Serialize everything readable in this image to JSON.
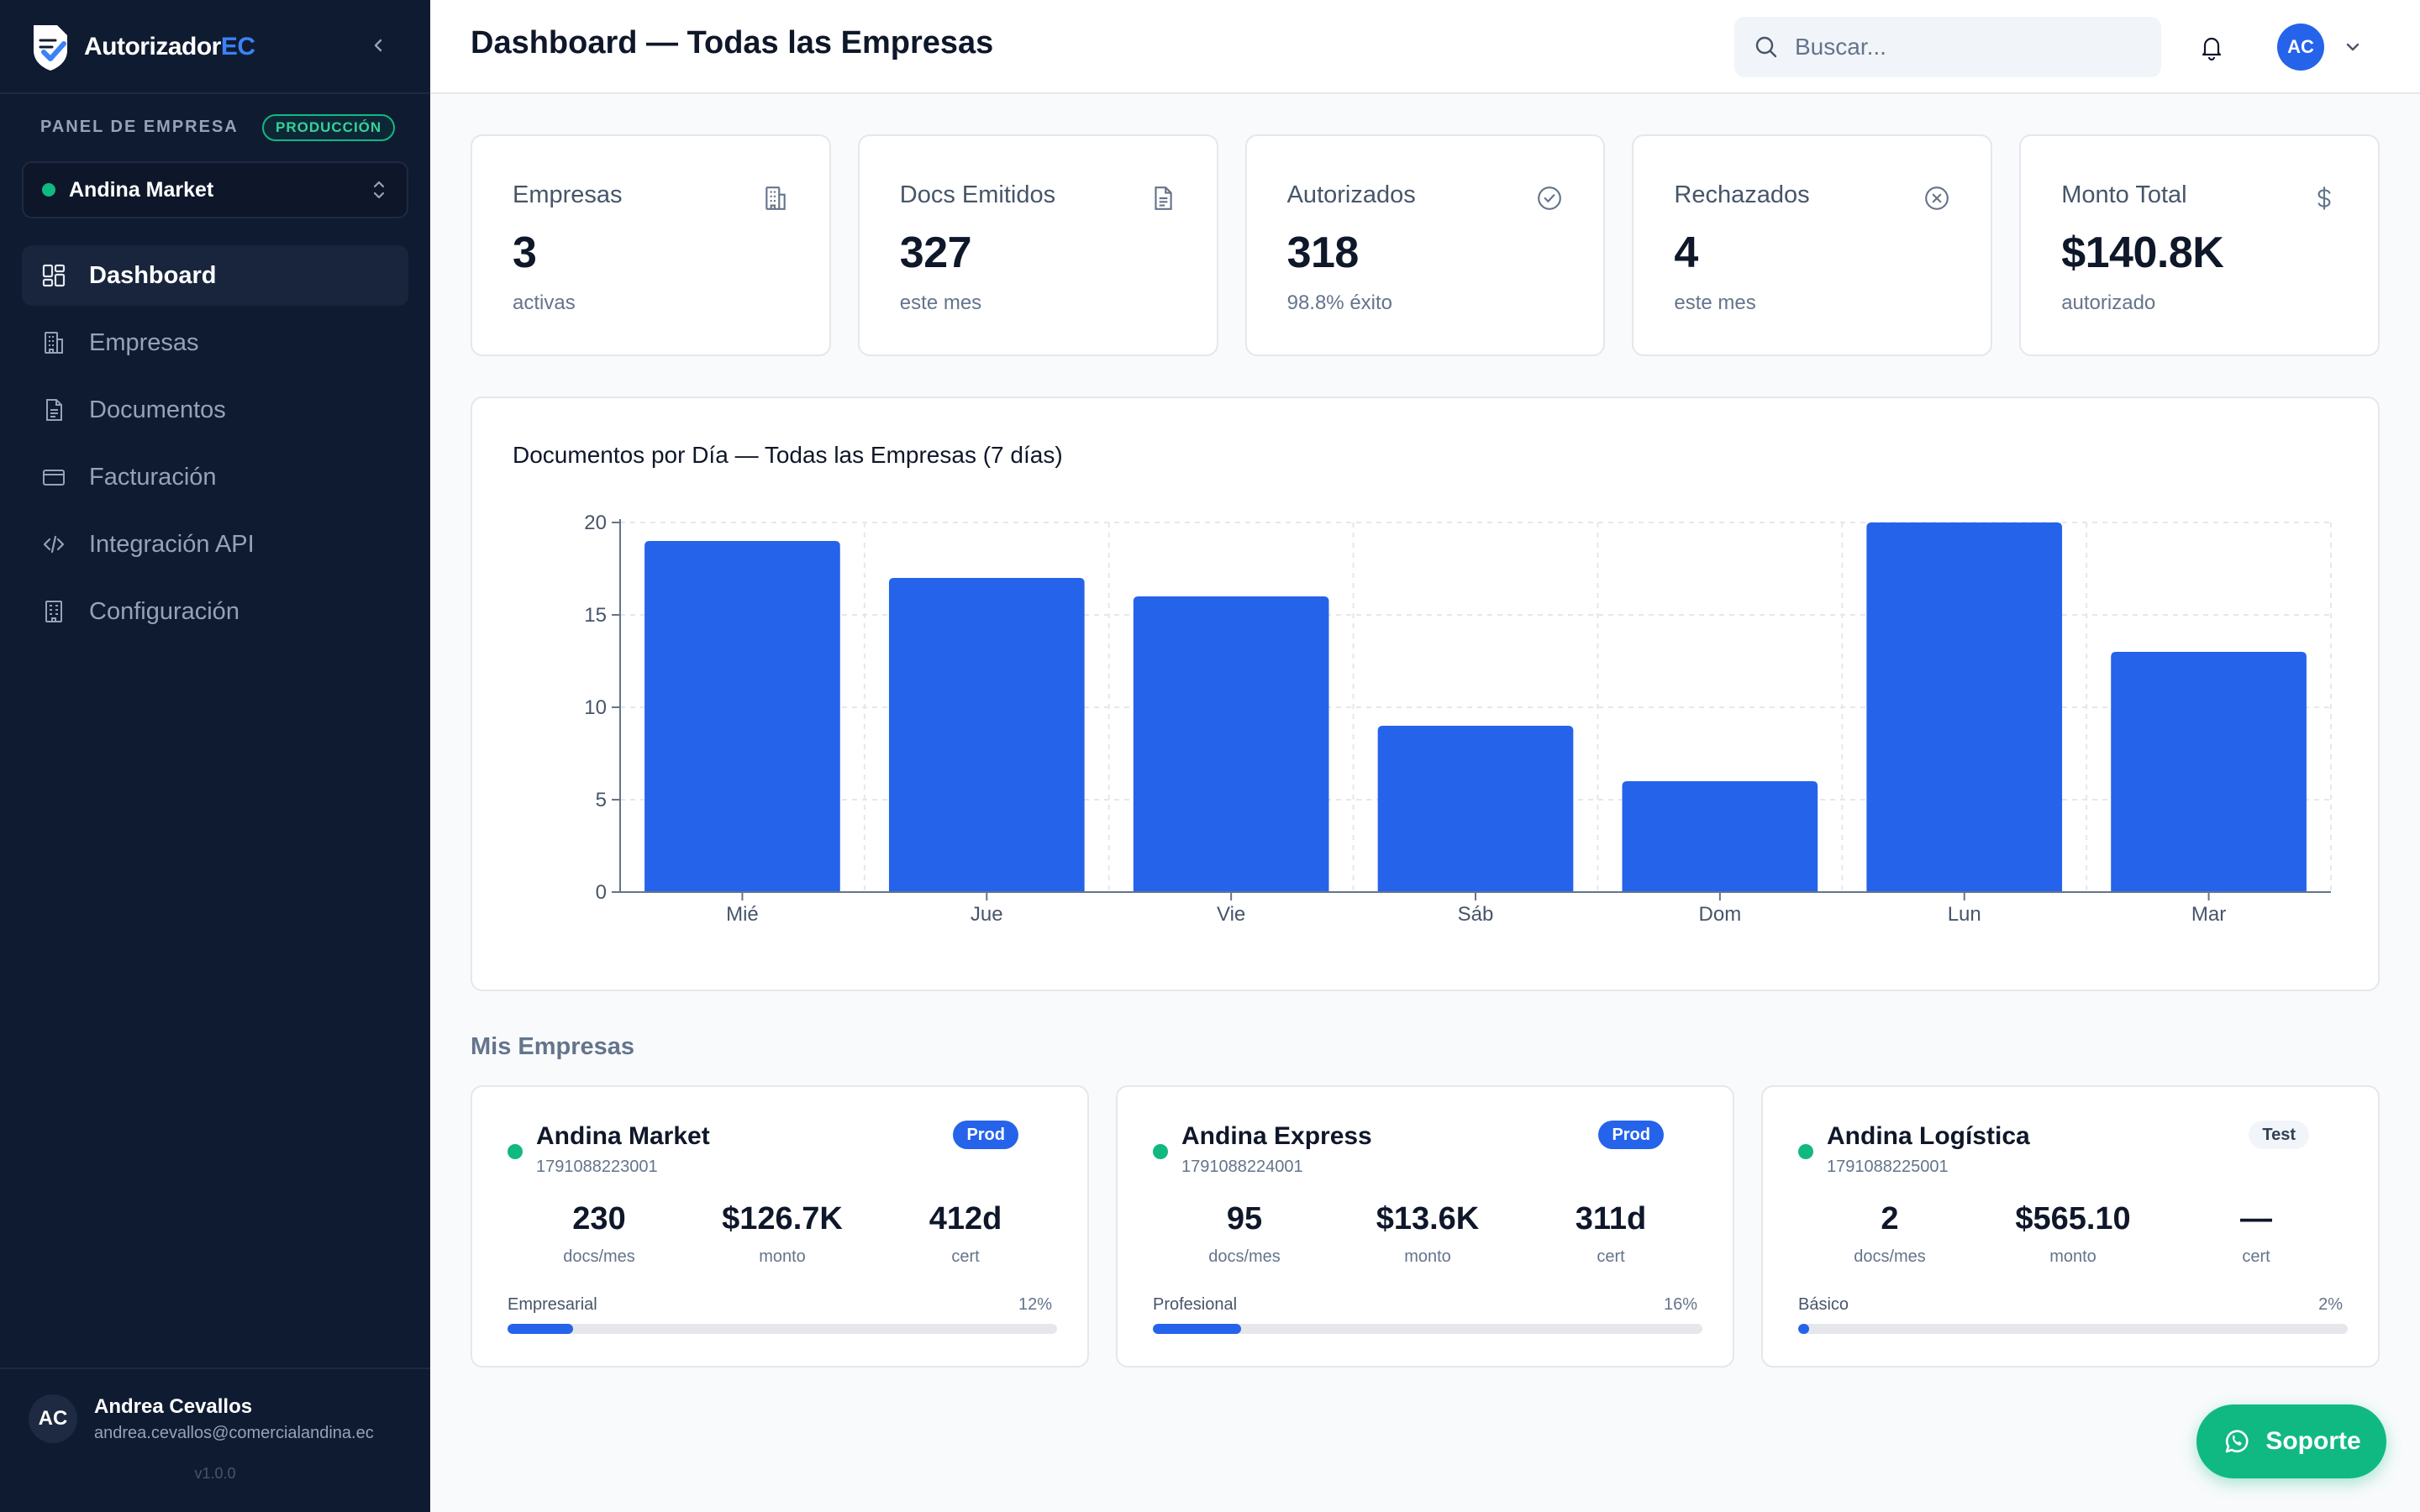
{
  "app": {
    "brand_main": "Autorizador",
    "brand_accent": "EC",
    "version": "v1.0.0"
  },
  "sidebar": {
    "panel_label": "PANEL DE EMPRESA",
    "env_badge": "PRODUCCIÓN",
    "selected_company": "Andina Market",
    "items": [
      {
        "label": "Dashboard",
        "icon": "dashboard-grid-icon",
        "active": true
      },
      {
        "label": "Empresas",
        "icon": "building-icon",
        "active": false
      },
      {
        "label": "Documentos",
        "icon": "document-icon",
        "active": false
      },
      {
        "label": "Facturación",
        "icon": "credit-card-icon",
        "active": false
      },
      {
        "label": "Integración API",
        "icon": "code-icon",
        "active": false
      },
      {
        "label": "Configuración",
        "icon": "settings-building-icon",
        "active": false
      }
    ],
    "user": {
      "initials": "AC",
      "name": "Andrea Cevallos",
      "email": "andrea.cevallos@comercialandina.ec"
    }
  },
  "header": {
    "title": "Dashboard — Todas las Empresas",
    "search_placeholder": "Buscar...",
    "avatar_initials": "AC"
  },
  "stats": [
    {
      "label": "Empresas",
      "value": "3",
      "sub": "activas",
      "icon": "building-icon"
    },
    {
      "label": "Docs Emitidos",
      "value": "327",
      "sub": "este mes",
      "icon": "document-icon"
    },
    {
      "label": "Autorizados",
      "value": "318",
      "sub": "98.8% éxito",
      "icon": "check-circle-icon"
    },
    {
      "label": "Rechazados",
      "value": "4",
      "sub": "este mes",
      "icon": "x-circle-icon"
    },
    {
      "label": "Monto Total",
      "value": "$140.8K",
      "sub": "autorizado",
      "icon": "dollar-icon"
    }
  ],
  "chart_data": {
    "type": "bar",
    "title": "Documentos por Día — Todas las Empresas (7 días)",
    "categories": [
      "Mié",
      "Jue",
      "Vie",
      "Sáb",
      "Dom",
      "Lun",
      "Mar"
    ],
    "values": [
      19,
      17,
      16,
      9,
      6,
      20,
      13
    ],
    "xlabel": "",
    "ylabel": "",
    "ylim": [
      0,
      20
    ],
    "yticks": [
      0,
      5,
      10,
      15,
      20
    ],
    "grid": true,
    "bar_color": "#2563eb"
  },
  "companies_section": {
    "title": "Mis Empresas",
    "labels": {
      "docs": "docs/mes",
      "monto": "monto",
      "cert": "cert"
    },
    "items": [
      {
        "name": "Andina Market",
        "ruc": "1791088223001",
        "badge": "Prod",
        "badge_type": "prod",
        "docs": "230",
        "monto": "$126.7K",
        "cert": "412d",
        "plan": "Empresarial",
        "pct_label": "12%",
        "pct": 12
      },
      {
        "name": "Andina Express",
        "ruc": "1791088224001",
        "badge": "Prod",
        "badge_type": "prod",
        "docs": "95",
        "monto": "$13.6K",
        "cert": "311d",
        "plan": "Profesional",
        "pct_label": "16%",
        "pct": 16
      },
      {
        "name": "Andina Logística",
        "ruc": "1791088225001",
        "badge": "Test",
        "badge_type": "test",
        "docs": "2",
        "monto": "$565.10",
        "cert": "—",
        "plan": "Básico",
        "pct_label": "2%",
        "pct": 2
      }
    ]
  },
  "support": {
    "label": "Soporte"
  },
  "colors": {
    "sidebar_bg": "#0f1b31",
    "accent": "#2563eb",
    "success": "#10b981"
  }
}
